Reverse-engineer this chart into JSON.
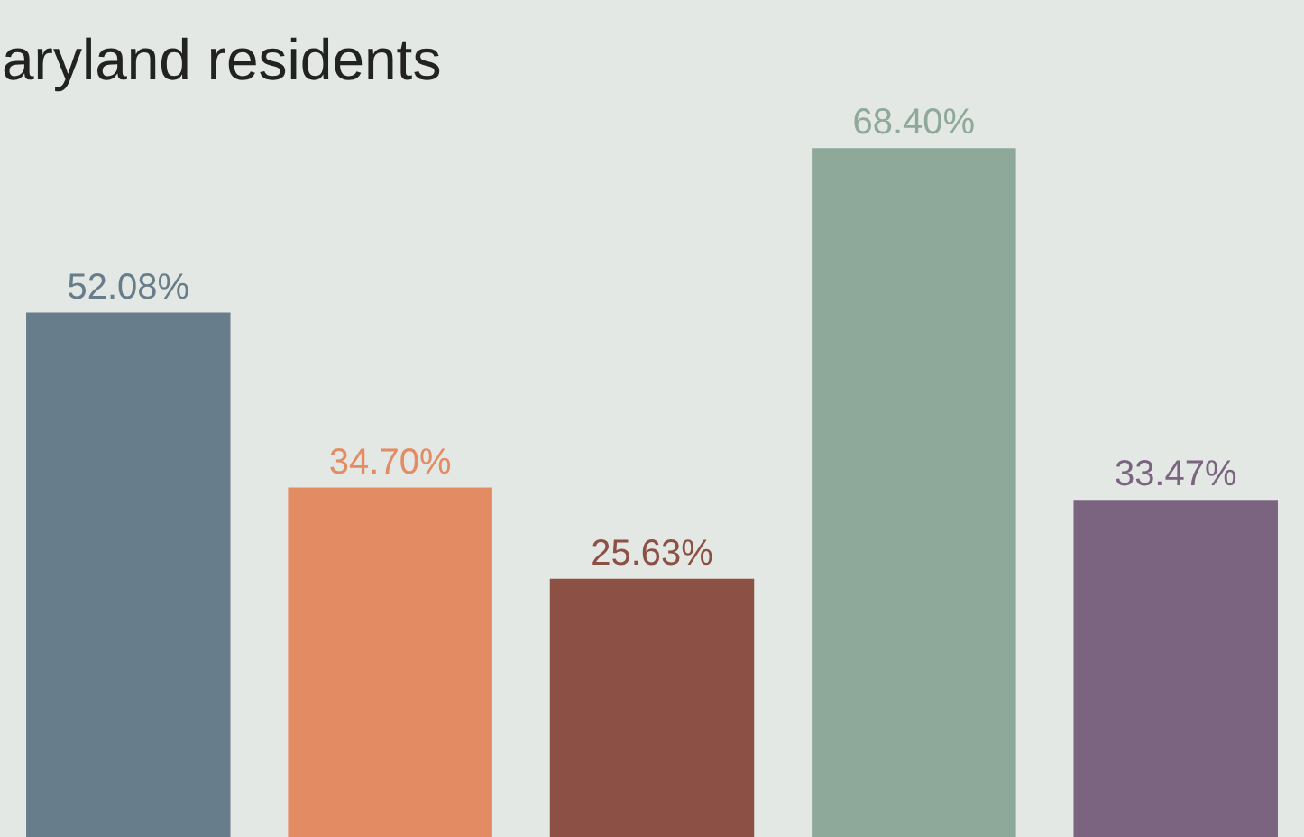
{
  "chart_data": {
    "type": "bar",
    "title": "aryland residents",
    "categories": [
      null,
      null,
      null,
      null,
      null
    ],
    "values": [
      52.08,
      34.7,
      25.63,
      68.4,
      33.47
    ],
    "value_labels": [
      "52.08%",
      "34.70%",
      "25.63%",
      "68.40%",
      "33.47%"
    ],
    "colors": [
      "#687d8b",
      "#e38b63",
      "#8c5144",
      "#8ea99a",
      "#7b6480"
    ]
  }
}
